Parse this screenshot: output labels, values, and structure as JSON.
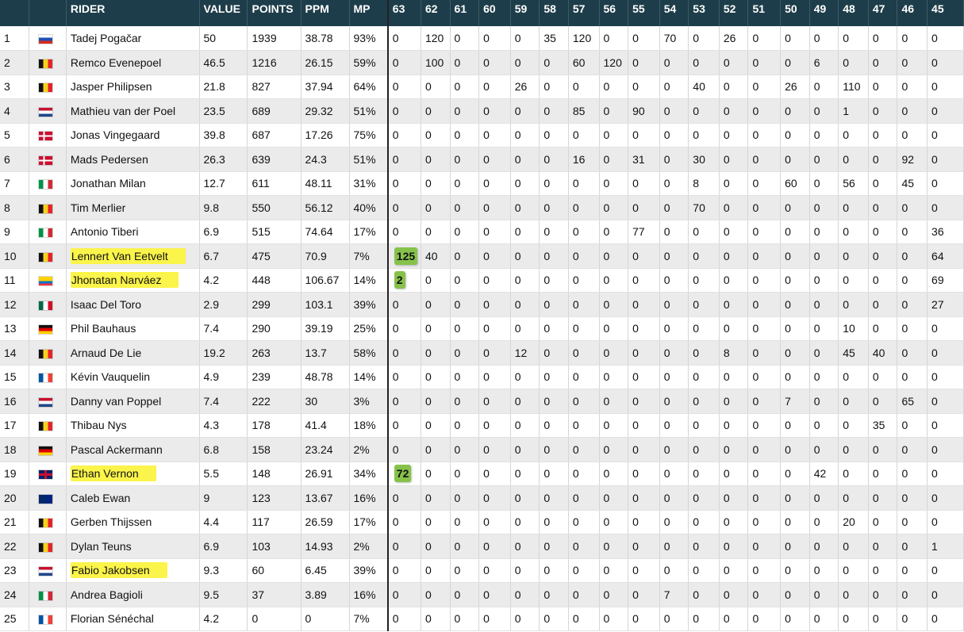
{
  "headers": [
    "",
    "",
    "RIDER",
    "VALUE",
    "POINTS",
    "PPM",
    "MP",
    "63",
    "62",
    "61",
    "60",
    "59",
    "58",
    "57",
    "56",
    "55",
    "54",
    "53",
    "52",
    "51",
    "50",
    "49",
    "48",
    "47",
    "46",
    "45"
  ],
  "colors": {
    "header_bg": "#1e3d4a",
    "highlight": "#fbf44a",
    "pill": "#86c24a"
  },
  "rows": [
    {
      "rank": "1",
      "flag": "slovenia",
      "name": "Tadej Pogačar",
      "value": "50",
      "points": "1939",
      "ppm": "38.78",
      "mp": "93%",
      "stages": [
        "0",
        "120",
        "0",
        "0",
        "0",
        "35",
        "120",
        "0",
        "0",
        "70",
        "0",
        "26",
        "0",
        "0",
        "0",
        "0",
        "0",
        "0",
        "0"
      ]
    },
    {
      "rank": "2",
      "flag": "belgium",
      "name": "Remco Evenepoel",
      "value": "46.5",
      "points": "1216",
      "ppm": "26.15",
      "mp": "59%",
      "stages": [
        "0",
        "100",
        "0",
        "0",
        "0",
        "0",
        "60",
        "120",
        "0",
        "0",
        "0",
        "0",
        "0",
        "0",
        "6",
        "0",
        "0",
        "0",
        "0"
      ]
    },
    {
      "rank": "3",
      "flag": "belgium",
      "name": "Jasper Philipsen",
      "value": "21.8",
      "points": "827",
      "ppm": "37.94",
      "mp": "64%",
      "stages": [
        "0",
        "0",
        "0",
        "0",
        "26",
        "0",
        "0",
        "0",
        "0",
        "0",
        "40",
        "0",
        "0",
        "26",
        "0",
        "110",
        "0",
        "0",
        "0"
      ]
    },
    {
      "rank": "4",
      "flag": "netherlands",
      "name": "Mathieu van der Poel",
      "value": "23.5",
      "points": "689",
      "ppm": "29.32",
      "mp": "51%",
      "stages": [
        "0",
        "0",
        "0",
        "0",
        "0",
        "0",
        "85",
        "0",
        "90",
        "0",
        "0",
        "0",
        "0",
        "0",
        "0",
        "1",
        "0",
        "0",
        "0"
      ]
    },
    {
      "rank": "5",
      "flag": "denmark",
      "name": "Jonas Vingegaard",
      "value": "39.8",
      "points": "687",
      "ppm": "17.26",
      "mp": "75%",
      "stages": [
        "0",
        "0",
        "0",
        "0",
        "0",
        "0",
        "0",
        "0",
        "0",
        "0",
        "0",
        "0",
        "0",
        "0",
        "0",
        "0",
        "0",
        "0",
        "0"
      ]
    },
    {
      "rank": "6",
      "flag": "denmark",
      "name": "Mads Pedersen",
      "value": "26.3",
      "points": "639",
      "ppm": "24.3",
      "mp": "51%",
      "stages": [
        "0",
        "0",
        "0",
        "0",
        "0",
        "0",
        "16",
        "0",
        "31",
        "0",
        "30",
        "0",
        "0",
        "0",
        "0",
        "0",
        "0",
        "92",
        "0"
      ]
    },
    {
      "rank": "7",
      "flag": "italy",
      "name": "Jonathan Milan",
      "value": "12.7",
      "points": "611",
      "ppm": "48.11",
      "mp": "31%",
      "stages": [
        "0",
        "0",
        "0",
        "0",
        "0",
        "0",
        "0",
        "0",
        "0",
        "0",
        "8",
        "0",
        "0",
        "60",
        "0",
        "56",
        "0",
        "45",
        "0"
      ]
    },
    {
      "rank": "8",
      "flag": "belgium",
      "name": "Tim Merlier",
      "value": "9.8",
      "points": "550",
      "ppm": "56.12",
      "mp": "40%",
      "stages": [
        "0",
        "0",
        "0",
        "0",
        "0",
        "0",
        "0",
        "0",
        "0",
        "0",
        "70",
        "0",
        "0",
        "0",
        "0",
        "0",
        "0",
        "0",
        "0"
      ]
    },
    {
      "rank": "9",
      "flag": "italy",
      "name": "Antonio Tiberi",
      "value": "6.9",
      "points": "515",
      "ppm": "74.64",
      "mp": "17%",
      "stages": [
        "0",
        "0",
        "0",
        "0",
        "0",
        "0",
        "0",
        "0",
        "77",
        "0",
        "0",
        "0",
        "0",
        "0",
        "0",
        "0",
        "0",
        "0",
        "36"
      ]
    },
    {
      "rank": "10",
      "flag": "belgium",
      "name": "Lennert Van Eetvelt",
      "hl": true,
      "value": "6.7",
      "points": "475",
      "ppm": "70.9",
      "mp": "7%",
      "pill": "125",
      "stages": [
        "125",
        "40",
        "0",
        "0",
        "0",
        "0",
        "0",
        "0",
        "0",
        "0",
        "0",
        "0",
        "0",
        "0",
        "0",
        "0",
        "0",
        "0",
        "64"
      ]
    },
    {
      "rank": "11",
      "flag": "ecuador",
      "name": "Jhonatan Narváez",
      "hl": true,
      "value": "4.2",
      "points": "448",
      "ppm": "106.67",
      "mp": "14%",
      "pill": "2",
      "stages": [
        "2",
        "0",
        "0",
        "0",
        "0",
        "0",
        "0",
        "0",
        "0",
        "0",
        "0",
        "0",
        "0",
        "0",
        "0",
        "0",
        "0",
        "0",
        "69"
      ]
    },
    {
      "rank": "12",
      "flag": "mexico",
      "name": "Isaac Del Toro",
      "value": "2.9",
      "points": "299",
      "ppm": "103.1",
      "mp": "39%",
      "stages": [
        "0",
        "0",
        "0",
        "0",
        "0",
        "0",
        "0",
        "0",
        "0",
        "0",
        "0",
        "0",
        "0",
        "0",
        "0",
        "0",
        "0",
        "0",
        "27"
      ]
    },
    {
      "rank": "13",
      "flag": "germany",
      "name": "Phil Bauhaus",
      "value": "7.4",
      "points": "290",
      "ppm": "39.19",
      "mp": "25%",
      "stages": [
        "0",
        "0",
        "0",
        "0",
        "0",
        "0",
        "0",
        "0",
        "0",
        "0",
        "0",
        "0",
        "0",
        "0",
        "0",
        "10",
        "0",
        "0",
        "0"
      ]
    },
    {
      "rank": "14",
      "flag": "belgium",
      "name": "Arnaud De Lie",
      "value": "19.2",
      "points": "263",
      "ppm": "13.7",
      "mp": "58%",
      "stages": [
        "0",
        "0",
        "0",
        "0",
        "12",
        "0",
        "0",
        "0",
        "0",
        "0",
        "0",
        "8",
        "0",
        "0",
        "0",
        "45",
        "40",
        "0",
        "0"
      ]
    },
    {
      "rank": "15",
      "flag": "france",
      "name": "Kévin Vauquelin",
      "value": "4.9",
      "points": "239",
      "ppm": "48.78",
      "mp": "14%",
      "stages": [
        "0",
        "0",
        "0",
        "0",
        "0",
        "0",
        "0",
        "0",
        "0",
        "0",
        "0",
        "0",
        "0",
        "0",
        "0",
        "0",
        "0",
        "0",
        "0"
      ]
    },
    {
      "rank": "16",
      "flag": "netherlands",
      "name": "Danny van Poppel",
      "value": "7.4",
      "points": "222",
      "ppm": "30",
      "mp": "3%",
      "stages": [
        "0",
        "0",
        "0",
        "0",
        "0",
        "0",
        "0",
        "0",
        "0",
        "0",
        "0",
        "0",
        "0",
        "7",
        "0",
        "0",
        "0",
        "65",
        "0"
      ]
    },
    {
      "rank": "17",
      "flag": "belgium",
      "name": "Thibau Nys",
      "value": "4.3",
      "points": "178",
      "ppm": "41.4",
      "mp": "18%",
      "stages": [
        "0",
        "0",
        "0",
        "0",
        "0",
        "0",
        "0",
        "0",
        "0",
        "0",
        "0",
        "0",
        "0",
        "0",
        "0",
        "0",
        "35",
        "0",
        "0"
      ]
    },
    {
      "rank": "18",
      "flag": "germany",
      "name": "Pascal Ackermann",
      "value": "6.8",
      "points": "158",
      "ppm": "23.24",
      "mp": "2%",
      "stages": [
        "0",
        "0",
        "0",
        "0",
        "0",
        "0",
        "0",
        "0",
        "0",
        "0",
        "0",
        "0",
        "0",
        "0",
        "0",
        "0",
        "0",
        "0",
        "0"
      ]
    },
    {
      "rank": "19",
      "flag": "uk",
      "name": "Ethan Vernon",
      "hl": true,
      "value": "5.5",
      "points": "148",
      "ppm": "26.91",
      "mp": "34%",
      "pill": "72",
      "stages": [
        "72",
        "0",
        "0",
        "0",
        "0",
        "0",
        "0",
        "0",
        "0",
        "0",
        "0",
        "0",
        "0",
        "0",
        "42",
        "0",
        "0",
        "0",
        "0"
      ]
    },
    {
      "rank": "20",
      "flag": "australia",
      "name": "Caleb Ewan",
      "value": "9",
      "points": "123",
      "ppm": "13.67",
      "mp": "16%",
      "stages": [
        "0",
        "0",
        "0",
        "0",
        "0",
        "0",
        "0",
        "0",
        "0",
        "0",
        "0",
        "0",
        "0",
        "0",
        "0",
        "0",
        "0",
        "0",
        "0"
      ]
    },
    {
      "rank": "21",
      "flag": "belgium",
      "name": "Gerben Thijssen",
      "value": "4.4",
      "points": "117",
      "ppm": "26.59",
      "mp": "17%",
      "stages": [
        "0",
        "0",
        "0",
        "0",
        "0",
        "0",
        "0",
        "0",
        "0",
        "0",
        "0",
        "0",
        "0",
        "0",
        "0",
        "20",
        "0",
        "0",
        "0"
      ]
    },
    {
      "rank": "22",
      "flag": "belgium",
      "name": "Dylan Teuns",
      "value": "6.9",
      "points": "103",
      "ppm": "14.93",
      "mp": "2%",
      "stages": [
        "0",
        "0",
        "0",
        "0",
        "0",
        "0",
        "0",
        "0",
        "0",
        "0",
        "0",
        "0",
        "0",
        "0",
        "0",
        "0",
        "0",
        "0",
        "1"
      ]
    },
    {
      "rank": "23",
      "flag": "netherlands",
      "name": "Fabio Jakobsen",
      "hl": true,
      "value": "9.3",
      "points": "60",
      "ppm": "6.45",
      "mp": "39%",
      "stages": [
        "0",
        "0",
        "0",
        "0",
        "0",
        "0",
        "0",
        "0",
        "0",
        "0",
        "0",
        "0",
        "0",
        "0",
        "0",
        "0",
        "0",
        "0",
        "0"
      ]
    },
    {
      "rank": "24",
      "flag": "italy",
      "name": "Andrea Bagioli",
      "value": "9.5",
      "points": "37",
      "ppm": "3.89",
      "mp": "16%",
      "stages": [
        "0",
        "0",
        "0",
        "0",
        "0",
        "0",
        "0",
        "0",
        "0",
        "7",
        "0",
        "0",
        "0",
        "0",
        "0",
        "0",
        "0",
        "0",
        "0"
      ]
    },
    {
      "rank": "25",
      "flag": "france",
      "name": "Florian Sénéchal",
      "value": "4.2",
      "points": "0",
      "ppm": "0",
      "mp": "7%",
      "stages": [
        "0",
        "0",
        "0",
        "0",
        "0",
        "0",
        "0",
        "0",
        "0",
        "0",
        "0",
        "0",
        "0",
        "0",
        "0",
        "0",
        "0",
        "0",
        "0"
      ]
    }
  ]
}
